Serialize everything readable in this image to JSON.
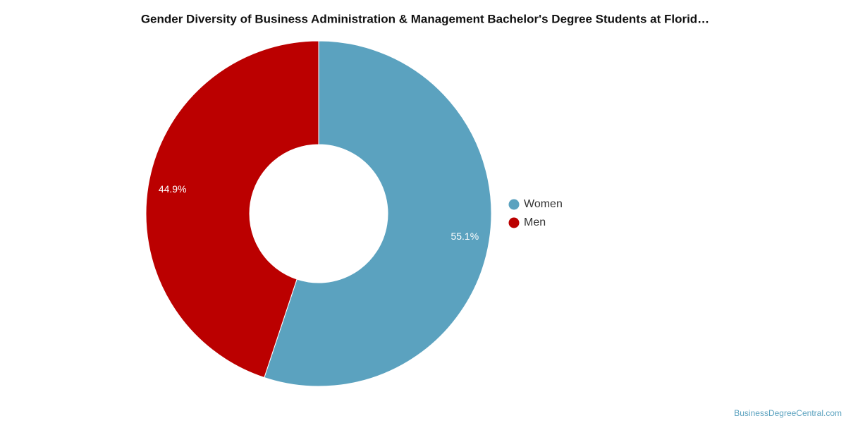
{
  "chart_data": {
    "type": "donut",
    "title": "Gender Diversity of Business Administration & Management Bachelor's Degree Students at Florid…",
    "categories": [
      "Women",
      "Men"
    ],
    "values": [
      55.1,
      44.9
    ],
    "value_labels": [
      "55.1%",
      "44.9%"
    ],
    "colors": [
      "#5ba2bf",
      "#bb0000"
    ],
    "legend": "right",
    "credit": "BusinessDegreeCentral.com"
  }
}
